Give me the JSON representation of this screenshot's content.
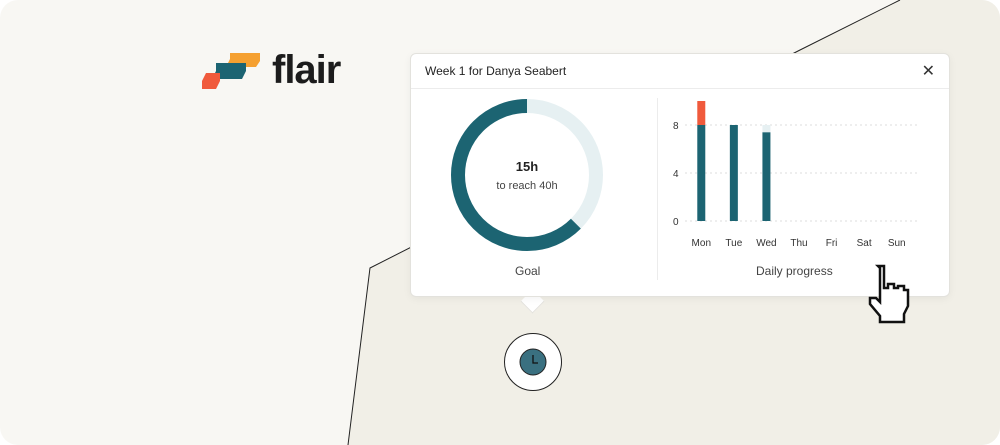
{
  "brand": {
    "name": "flair",
    "colors": {
      "orange": "#f5a030",
      "teal": "#1c6472",
      "red": "#f05a3c"
    }
  },
  "card": {
    "title": "Week 1 for Danya Seabert",
    "close_icon": "close-icon",
    "goal": {
      "hours_left_label": "15h",
      "subtitle": "to reach 40h",
      "label": "Goal",
      "goal_hours": 40,
      "remaining_hours": 15
    },
    "chart_label": "Daily progress"
  },
  "chart_data": {
    "type": "bar",
    "stacked": true,
    "categories": [
      "Mon",
      "Tue",
      "Wed",
      "Thu",
      "Fri",
      "Sat",
      "Sun"
    ],
    "series": [
      {
        "values": [
          8,
          8,
          7.4,
          0,
          0,
          0,
          0
        ],
        "color": "#1c6472"
      },
      {
        "values": [
          2,
          0,
          0,
          0,
          0,
          0,
          0
        ],
        "color": "#f05a3c"
      },
      {
        "values": [
          0,
          0,
          0.6,
          0,
          0,
          0,
          0
        ],
        "color": "#e6f0f2"
      }
    ],
    "yticks": [
      0,
      4,
      8
    ],
    "ylim": [
      0,
      10
    ],
    "grid": true,
    "xlabel": "Daily progress"
  },
  "icons": {
    "clock": "clock-icon",
    "cursor": "hand-pointer-icon"
  }
}
